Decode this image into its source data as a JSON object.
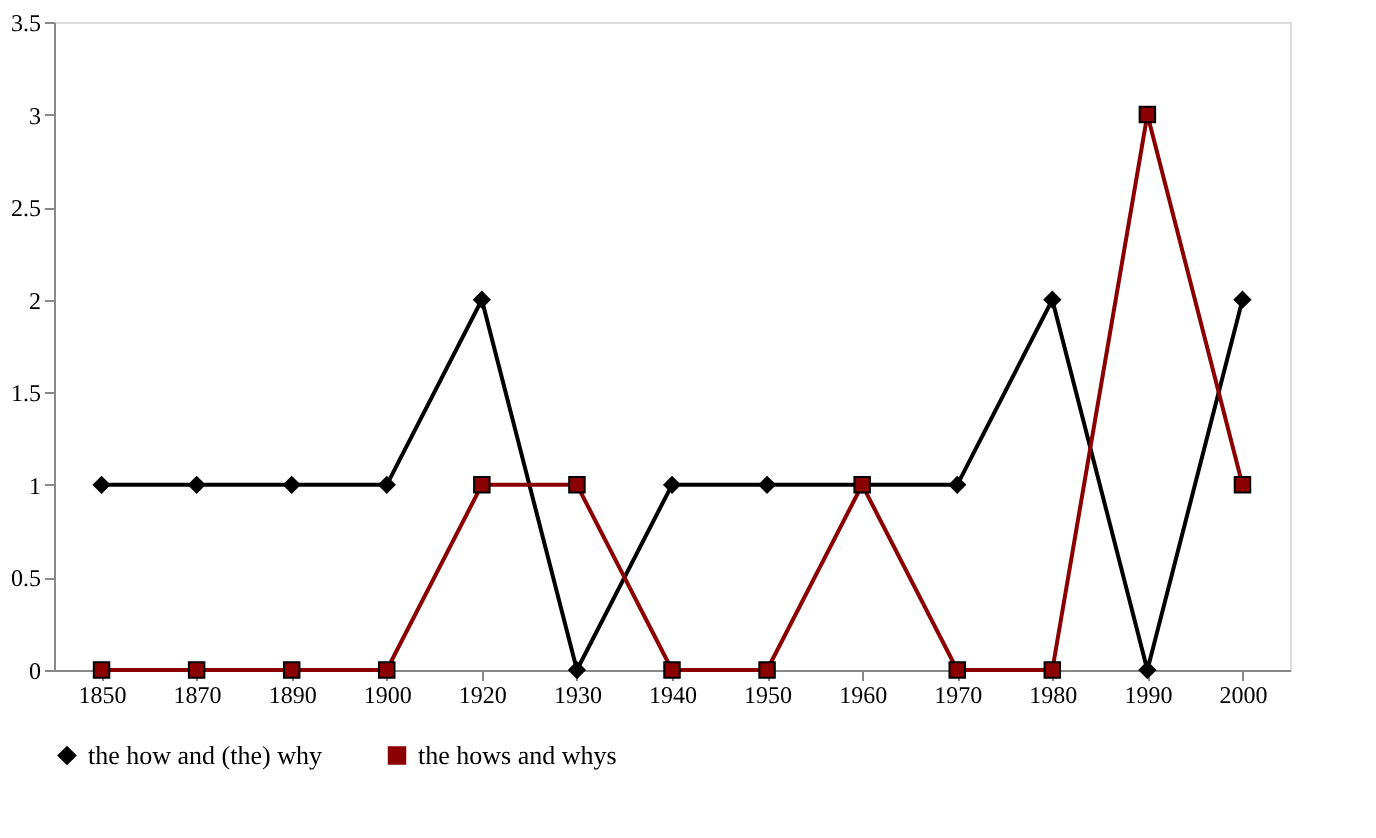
{
  "chart_data": {
    "type": "line",
    "categories": [
      "1850",
      "1870",
      "1890",
      "1900",
      "1920",
      "1930",
      "1940",
      "1950",
      "1960",
      "1970",
      "1980",
      "1990",
      "2000"
    ],
    "series": [
      {
        "name": "the how and (the) why",
        "color": "#000000",
        "marker": "diamond",
        "values": [
          1,
          1,
          1,
          1,
          2,
          0,
          1,
          1,
          1,
          1,
          2,
          0,
          2
        ]
      },
      {
        "name": "the hows and whys",
        "color": "#8b0000",
        "marker": "square",
        "values": [
          0,
          0,
          0,
          0,
          1,
          1,
          0,
          0,
          1,
          0,
          0,
          3,
          1
        ]
      }
    ],
    "ylim": [
      0,
      3.5
    ],
    "yticks": [
      0,
      0.5,
      1,
      1.5,
      2,
      2.5,
      3,
      3.5
    ],
    "grid": false,
    "legend": "bottom",
    "line_style": "solid"
  }
}
